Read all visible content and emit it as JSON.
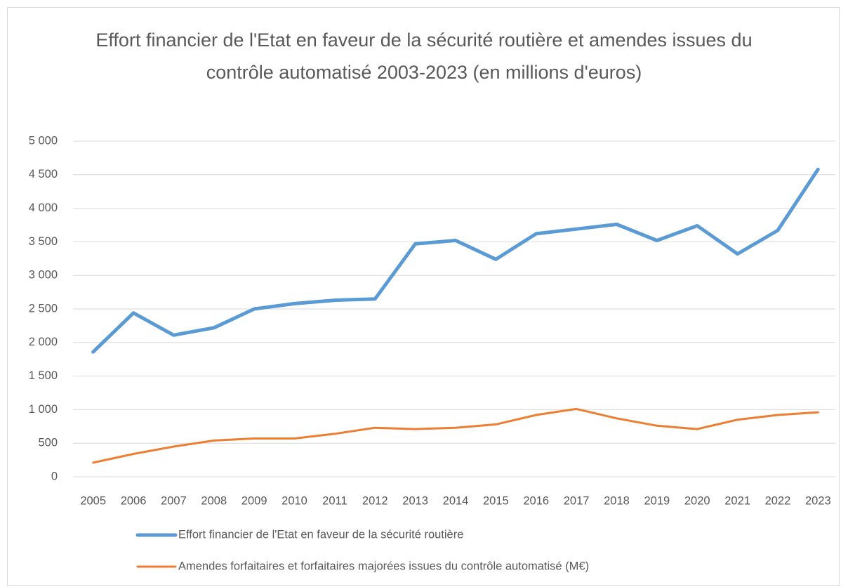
{
  "chart_data": {
    "type": "line",
    "title": "Effort financier de l'Etat en faveur de la sécurité routière et amendes issues du contrôle automatisé 2003-2023 (en millions d'euros)",
    "categories": [
      "2005",
      "2006",
      "2007",
      "2008",
      "2009",
      "2010",
      "2011",
      "2012",
      "2013",
      "2014",
      "2015",
      "2016",
      "2017",
      "2018",
      "2019",
      "2020",
      "2021",
      "2022",
      "2023"
    ],
    "series": [
      {
        "name": "Effort financier de l'Etat en faveur de la sécurité routière",
        "color": "#5b9bd5",
        "values": [
          1860,
          2440,
          2110,
          2220,
          2500,
          2580,
          2630,
          2650,
          3470,
          3520,
          3240,
          3620,
          3690,
          3760,
          3520,
          3740,
          3320,
          3670,
          4580
        ]
      },
      {
        "name": "Amendes forfaitaires et forfaitaires majorées issues du contrôle automatisé (M€)",
        "color": "#ed7d31",
        "values": [
          210,
          340,
          450,
          540,
          570,
          570,
          640,
          730,
          710,
          730,
          780,
          920,
          1010,
          870,
          760,
          710,
          850,
          920,
          960
        ]
      }
    ],
    "ylim": [
      0,
      5000
    ],
    "yticks": [
      0,
      500,
      {
        "value": 1000,
        "label": "1 000"
      },
      {
        "value": 1500,
        "label": "1 500"
      },
      {
        "value": 2000,
        "label": "2 000"
      },
      {
        "value": 2500,
        "label": "2 500"
      },
      {
        "value": 3000,
        "label": "3 000"
      },
      {
        "value": 3500,
        "label": "3 500"
      },
      {
        "value": 4000,
        "label": "4 000"
      },
      {
        "value": 4500,
        "label": "4 500"
      },
      {
        "value": 5000,
        "label": "5 000"
      }
    ],
    "grid": true,
    "legend": "bottom"
  }
}
